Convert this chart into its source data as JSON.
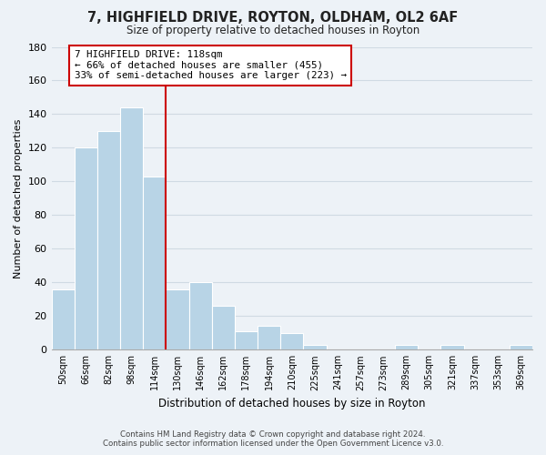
{
  "title": "7, HIGHFIELD DRIVE, ROYTON, OLDHAM, OL2 6AF",
  "subtitle": "Size of property relative to detached houses in Royton",
  "xlabel": "Distribution of detached houses by size in Royton",
  "ylabel": "Number of detached properties",
  "bin_labels": [
    "50sqm",
    "66sqm",
    "82sqm",
    "98sqm",
    "114sqm",
    "130sqm",
    "146sqm",
    "162sqm",
    "178sqm",
    "194sqm",
    "210sqm",
    "225sqm",
    "241sqm",
    "257sqm",
    "273sqm",
    "289sqm",
    "305sqm",
    "321sqm",
    "337sqm",
    "353sqm",
    "369sqm"
  ],
  "bar_values": [
    36,
    120,
    130,
    144,
    103,
    36,
    40,
    26,
    11,
    14,
    10,
    3,
    0,
    0,
    0,
    3,
    0,
    3,
    0,
    0,
    3
  ],
  "bar_color": "#b8d4e6",
  "bar_edge_color": "#ffffff",
  "grid_color": "#d0dae3",
  "background_color": "#edf2f7",
  "vline_color": "#cc0000",
  "annotation_text": "7 HIGHFIELD DRIVE: 118sqm\n← 66% of detached houses are smaller (455)\n33% of semi-detached houses are larger (223) →",
  "annotation_box_color": "#ffffff",
  "annotation_box_edge": "#cc0000",
  "ylim": [
    0,
    180
  ],
  "yticks": [
    0,
    20,
    40,
    60,
    80,
    100,
    120,
    140,
    160,
    180
  ],
  "footer_line1": "Contains HM Land Registry data © Crown copyright and database right 2024.",
  "footer_line2": "Contains public sector information licensed under the Open Government Licence v3.0."
}
